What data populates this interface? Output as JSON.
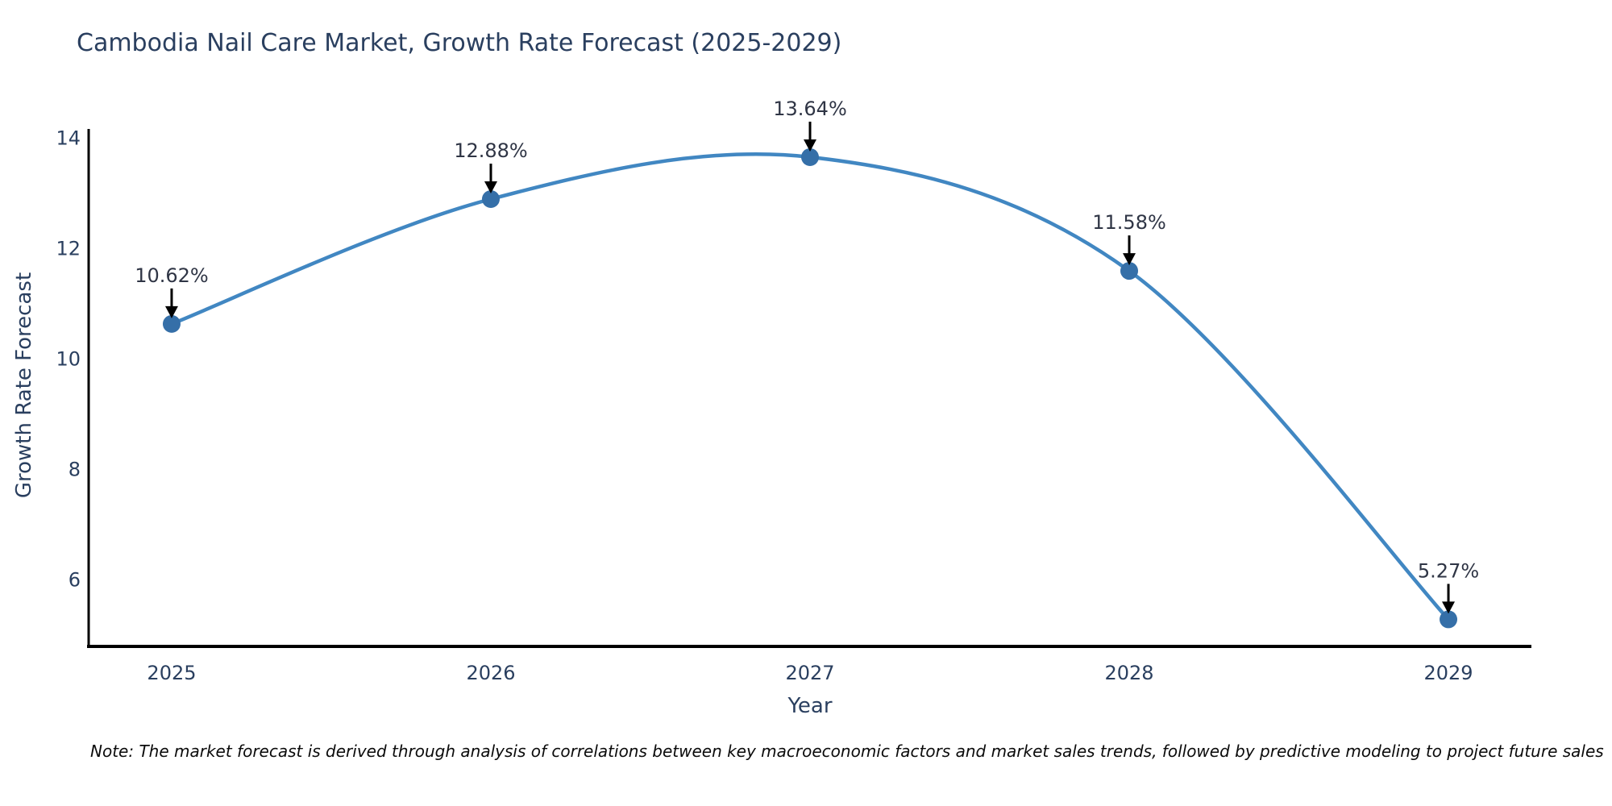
{
  "note": "Note: The market forecast is derived through analysis of correlations between key macroeconomic factors and market sales trends, followed by predictive modeling to project future sales",
  "chart_data": {
    "type": "line",
    "title": "Cambodia Nail Care Market, Growth Rate Forecast (2025-2029)",
    "xlabel": "Year",
    "ylabel": "Growth Rate Forecast",
    "x": [
      2025,
      2026,
      2027,
      2028,
      2029
    ],
    "values": [
      10.62,
      12.88,
      13.64,
      11.58,
      5.27
    ],
    "point_labels": [
      "10.62%",
      "12.88%",
      "13.64%",
      "11.58%",
      "5.27%"
    ],
    "yticks": [
      6,
      8,
      10,
      12,
      14
    ],
    "ylim": [
      4.78,
      14.15
    ],
    "xlim": [
      2024.74,
      2029.26
    ],
    "line_shape": "spline",
    "grid": false,
    "legend": "none",
    "colors": {
      "line": "#4187c2",
      "marker": "#356fa8",
      "axis": "#000000",
      "labels": "#2a3f5f",
      "annotation_text": "#2f3545",
      "arrow": "#000000",
      "background": "#ffffff"
    }
  }
}
